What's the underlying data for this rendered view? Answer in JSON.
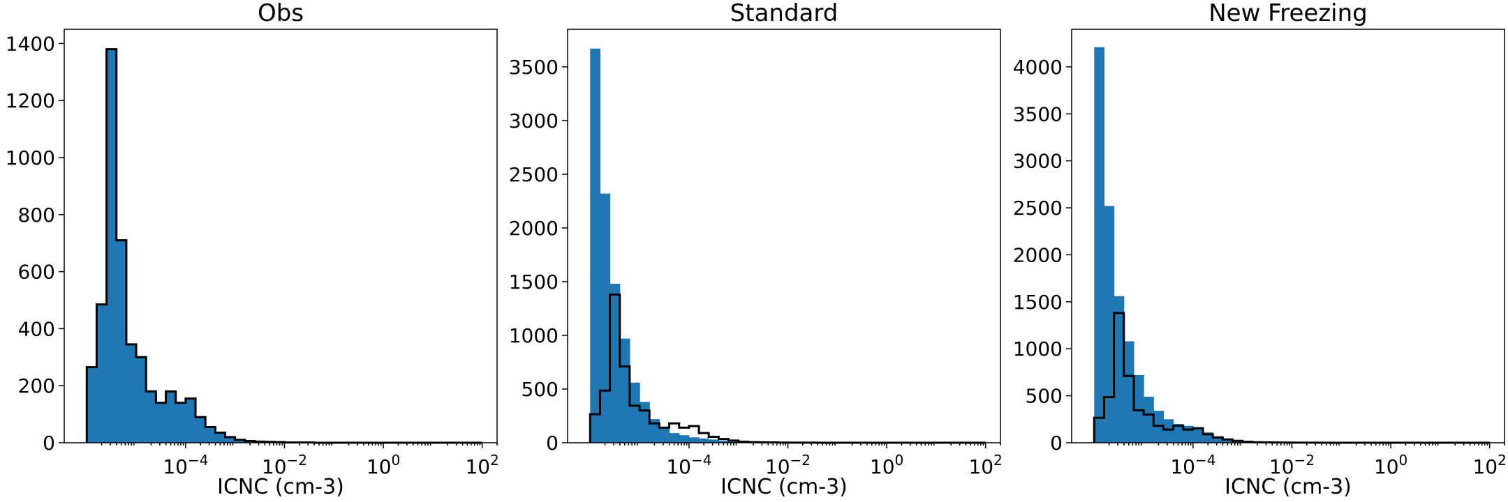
{
  "chart_data": [
    {
      "type": "histogram",
      "title": "Obs",
      "xlabel": "ICNC (cm-3)",
      "ylabel": "",
      "x_scale": "log",
      "x_range": [
        3.5e-07,
        200
      ],
      "ylim": [
        0,
        1450
      ],
      "y_ticks": [
        0,
        200,
        400,
        600,
        800,
        1000,
        1200,
        1400
      ],
      "x_ticks": [
        {
          "value": 0.0001,
          "base": "10",
          "exp": "−4"
        },
        {
          "value": 0.01,
          "base": "10",
          "exp": "−2"
        },
        {
          "value": 1,
          "base": "10",
          "exp": "0"
        },
        {
          "value": 100,
          "base": "10",
          "exp": "2"
        }
      ],
      "bin_edges": [
        1e-06,
        1.585e-06,
        2.512e-06,
        3.981e-06,
        6.31e-06,
        1e-05,
        1.585e-05,
        2.512e-05,
        3.981e-05,
        6.31e-05,
        0.0001,
        0.0001585,
        0.0002512,
        0.0003981,
        0.000631,
        0.001,
        0.001585,
        0.002512,
        0.003981,
        0.00631,
        0.01,
        0.01585,
        0.02512,
        0.03981,
        0.0631,
        0.1,
        0.1585,
        0.2512,
        0.3981,
        0.631,
        1,
        1.585,
        2.512,
        3.981,
        6.31,
        10,
        15.85,
        25.12,
        39.81,
        63.1,
        100
      ],
      "bars": [
        265,
        485,
        1380,
        710,
        345,
        300,
        180,
        140,
        180,
        140,
        155,
        90,
        55,
        35,
        20,
        10,
        6,
        4,
        3,
        2,
        1,
        1,
        1,
        0,
        0,
        0,
        0,
        0,
        0,
        0,
        0,
        0,
        0,
        0,
        0,
        0,
        0,
        0,
        0,
        0
      ],
      "obs_outline": [
        265,
        485,
        1380,
        710,
        345,
        300,
        180,
        140,
        180,
        140,
        155,
        90,
        55,
        35,
        20,
        10,
        6,
        4,
        3,
        2,
        1,
        1,
        1,
        0,
        0,
        0,
        0,
        0,
        0,
        0,
        0,
        0,
        0,
        0,
        0,
        0,
        0,
        0,
        0,
        0
      ]
    },
    {
      "type": "histogram",
      "title": "Standard",
      "xlabel": "ICNC (cm-3)",
      "ylabel": "",
      "x_scale": "log",
      "x_range": [
        3.5e-07,
        200
      ],
      "ylim": [
        0,
        3850
      ],
      "y_ticks": [
        0,
        500,
        1000,
        1500,
        2000,
        2500,
        3000,
        3500
      ],
      "x_ticks": [
        {
          "value": 0.0001,
          "base": "10",
          "exp": "−4"
        },
        {
          "value": 0.01,
          "base": "10",
          "exp": "−2"
        },
        {
          "value": 1,
          "base": "10",
          "exp": "0"
        },
        {
          "value": 100,
          "base": "10",
          "exp": "2"
        }
      ],
      "bin_edges": [
        1e-06,
        1.585e-06,
        2.512e-06,
        3.981e-06,
        6.31e-06,
        1e-05,
        1.585e-05,
        2.512e-05,
        3.981e-05,
        6.31e-05,
        0.0001,
        0.0001585,
        0.0002512,
        0.0003981,
        0.000631,
        0.001,
        0.001585,
        0.002512,
        0.003981,
        0.00631,
        0.01,
        0.01585,
        0.02512,
        0.03981,
        0.0631,
        0.1,
        0.1585,
        0.2512,
        0.3981,
        0.631,
        1,
        1.585,
        2.512,
        3.981,
        6.31,
        10,
        15.85,
        25.12,
        39.81,
        63.1,
        100
      ],
      "bars": [
        3670,
        2320,
        1480,
        970,
        560,
        380,
        220,
        140,
        90,
        70,
        50,
        40,
        30,
        20,
        15,
        10,
        6,
        4,
        3,
        2,
        1,
        1,
        0,
        0,
        0,
        0,
        0,
        0,
        0,
        0,
        0,
        0,
        0,
        0,
        0,
        0,
        0,
        0,
        0,
        0
      ],
      "obs_outline": [
        265,
        485,
        1380,
        710,
        345,
        300,
        180,
        140,
        180,
        140,
        155,
        90,
        55,
        35,
        20,
        10,
        6,
        4,
        3,
        2,
        1,
        1,
        1,
        0,
        0,
        0,
        0,
        0,
        0,
        0,
        0,
        0,
        0,
        0,
        0,
        0,
        0,
        0,
        0,
        0
      ]
    },
    {
      "type": "histogram",
      "title": "New Freezing",
      "xlabel": "ICNC (cm-3)",
      "ylabel": "",
      "x_scale": "log",
      "x_range": [
        3.5e-07,
        200
      ],
      "ylim": [
        0,
        4400
      ],
      "y_ticks": [
        0,
        500,
        1000,
        1500,
        2000,
        2500,
        3000,
        3500,
        4000
      ],
      "x_ticks": [
        {
          "value": 0.0001,
          "base": "10",
          "exp": "−4"
        },
        {
          "value": 0.01,
          "base": "10",
          "exp": "−2"
        },
        {
          "value": 1,
          "base": "10",
          "exp": "0"
        },
        {
          "value": 100,
          "base": "10",
          "exp": "2"
        }
      ],
      "bin_edges": [
        1e-06,
        1.585e-06,
        2.512e-06,
        3.981e-06,
        6.31e-06,
        1e-05,
        1.585e-05,
        2.512e-05,
        3.981e-05,
        6.31e-05,
        0.0001,
        0.0001585,
        0.0002512,
        0.0003981,
        0.000631,
        0.001,
        0.001585,
        0.002512,
        0.003981,
        0.00631,
        0.01,
        0.01585,
        0.02512,
        0.03981,
        0.0631,
        0.1,
        0.1585,
        0.2512,
        0.3981,
        0.631,
        1,
        1.585,
        2.512,
        3.981,
        6.31,
        10,
        15.85,
        25.12,
        39.81,
        63.1,
        100
      ],
      "bars": [
        4210,
        2520,
        1560,
        1080,
        720,
        490,
        340,
        250,
        200,
        180,
        160,
        110,
        70,
        40,
        25,
        15,
        8,
        5,
        3,
        2,
        1,
        1,
        0,
        0,
        0,
        0,
        0,
        0,
        0,
        0,
        0,
        0,
        0,
        0,
        0,
        0,
        0,
        0,
        0,
        0
      ],
      "obs_outline": [
        265,
        485,
        1380,
        710,
        345,
        300,
        180,
        140,
        180,
        140,
        155,
        90,
        55,
        35,
        20,
        10,
        6,
        4,
        3,
        2,
        1,
        1,
        1,
        0,
        0,
        0,
        0,
        0,
        0,
        0,
        0,
        0,
        0,
        0,
        0,
        0,
        0,
        0,
        0,
        0
      ]
    }
  ],
  "colors": {
    "bars": "#1f77b4",
    "outline": "#000000"
  }
}
